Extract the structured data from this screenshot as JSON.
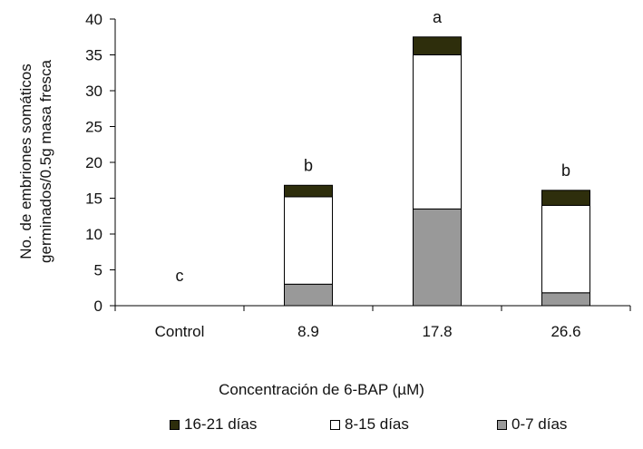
{
  "chart_data": {
    "type": "bar",
    "stacked": true,
    "categories": [
      "Control",
      "8.9",
      "17.8",
      "26.6"
    ],
    "series": [
      {
        "name": "0-7 días",
        "color": "#999999",
        "values": [
          0,
          3.0,
          13.5,
          1.8
        ]
      },
      {
        "name": "8-15 días",
        "color": "#ffffff",
        "values": [
          0,
          12.2,
          21.5,
          12.2
        ]
      },
      {
        "name": "16-21 días",
        "color": "#2e2e0c",
        "values": [
          0,
          1.6,
          2.5,
          2.1
        ]
      }
    ],
    "significance_letters": [
      "c",
      "b",
      "a",
      "b"
    ],
    "xlabel": "Concentración  de 6-BAP (µM)",
    "ylabel": [
      "No. de embriones somáticos",
      "germinados/0.5g  masa fresca"
    ],
    "ylim": [
      0,
      40
    ],
    "yticks": [
      0,
      5,
      10,
      15,
      20,
      25,
      30,
      35,
      40
    ],
    "grid": false,
    "legend_placement": "bottom",
    "legend_order": [
      "16-21 días",
      "8-15 días",
      "0-7 días"
    ]
  }
}
